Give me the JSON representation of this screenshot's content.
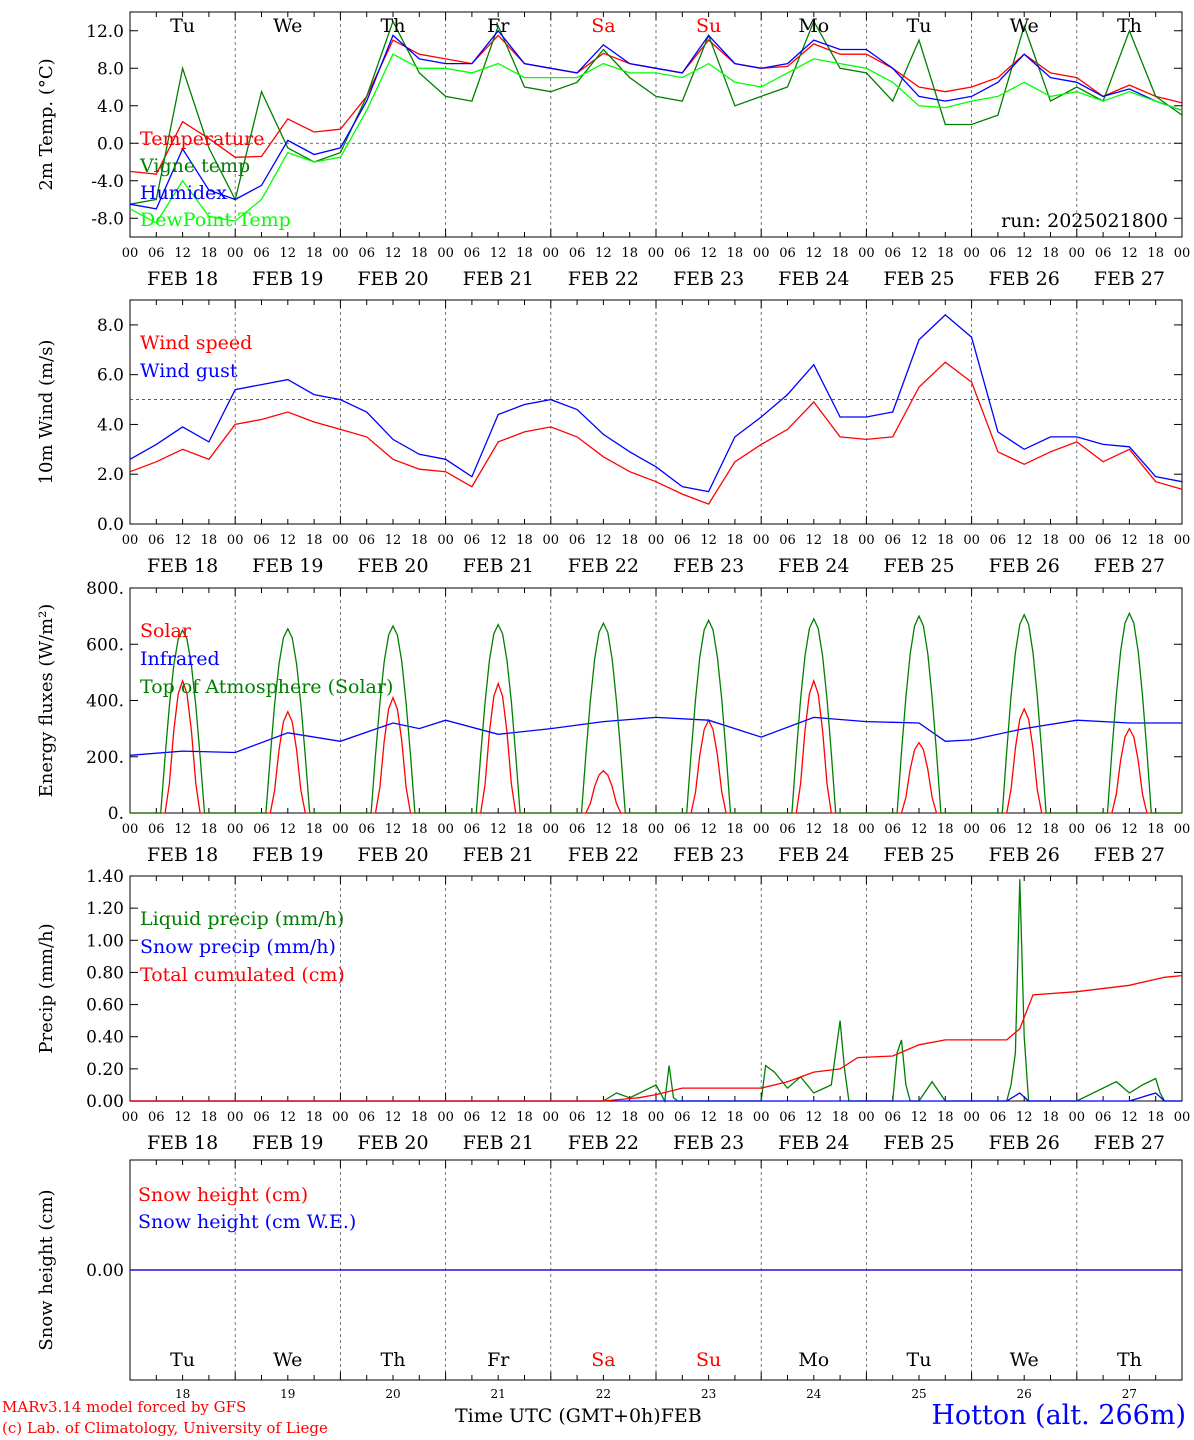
{
  "run_label": "run: 2025021800",
  "station": "Hotton (alt. 266m)",
  "credit_line1": "MARv3.14 model forced by GFS",
  "credit_line2": "(c) Lab. of Climatology, University of Liege",
  "xlabel": "Time UTC (GMT+0h)",
  "month_label": "FEB",
  "days": [
    "FEB 18",
    "FEB 19",
    "FEB 20",
    "FEB 21",
    "FEB 22",
    "FEB 23",
    "FEB 24",
    "FEB 25",
    "FEB 26",
    "FEB 27"
  ],
  "day_numbers": [
    "18",
    "19",
    "20",
    "21",
    "22",
    "23",
    "24",
    "25",
    "26",
    "27"
  ],
  "weekdays": [
    "Tu",
    "We",
    "Th",
    "Fr",
    "Sa",
    "Su",
    "Mo",
    "Tu",
    "We",
    "Th"
  ],
  "weekend_color": "#ff0000",
  "hour_ticks": [
    "00",
    "06",
    "12",
    "18"
  ],
  "colors": {
    "red": "#ff0000",
    "green": "#007f00",
    "blue": "#0000ff",
    "lime": "#00ff00",
    "grid": "#555555"
  },
  "chart_data": [
    {
      "type": "line",
      "ylabel": "2m Temp. (°C)",
      "ylim": [
        -10,
        14
      ],
      "yticks": [
        -8,
        -4,
        0,
        4,
        8,
        12
      ],
      "ytick_labels": [
        "-8.0",
        "-4.0",
        "0.0",
        "4.0",
        "8.0",
        "12.0"
      ],
      "hline": 0,
      "x_unit": "hours since FEB 18 00 UTC",
      "series": [
        {
          "name": "Temperature",
          "color": "#ff0000",
          "x": [
            0,
            6,
            12,
            18,
            24,
            30,
            36,
            42,
            48,
            54,
            60,
            66,
            72,
            78,
            84,
            90,
            96,
            102,
            108,
            114,
            120,
            126,
            132,
            138,
            144,
            150,
            156,
            162,
            168,
            174,
            180,
            186,
            192,
            198,
            204,
            210,
            216,
            222,
            228,
            234,
            240
          ],
          "y": [
            -3,
            -3.3,
            2.3,
            0.5,
            -1.5,
            -1.4,
            2.6,
            1.2,
            1.5,
            5,
            11,
            9.5,
            9,
            8.5,
            11.5,
            8.5,
            8,
            7.5,
            9.6,
            8.5,
            8,
            7.5,
            11,
            8.5,
            8,
            8.2,
            10.6,
            9.5,
            9.5,
            8,
            6,
            5.5,
            6,
            7,
            9.5,
            7.5,
            7,
            5,
            6.2,
            5,
            4.3
          ]
        },
        {
          "name": "Vigne temp",
          "color": "#007f00",
          "x": [
            0,
            6,
            12,
            18,
            24,
            30,
            36,
            42,
            48,
            54,
            60,
            66,
            72,
            78,
            84,
            90,
            96,
            102,
            108,
            114,
            120,
            126,
            132,
            138,
            144,
            150,
            156,
            162,
            168,
            174,
            180,
            186,
            192,
            198,
            204,
            210,
            216,
            222,
            228,
            234,
            240
          ],
          "y": [
            -6.5,
            -6,
            8,
            -0.5,
            -6,
            5.5,
            -0.5,
            -2,
            -1,
            5,
            13,
            7.5,
            5,
            4.5,
            12.5,
            6,
            5.5,
            6.5,
            10,
            7,
            5,
            4.5,
            11.5,
            4,
            5,
            6,
            13,
            8,
            7.5,
            4.5,
            11,
            2,
            2,
            3,
            12.5,
            4.5,
            6,
            4.5,
            12,
            5,
            3
          ]
        },
        {
          "name": "Humidex",
          "color": "#0000ff",
          "x": [
            0,
            6,
            12,
            18,
            24,
            30,
            36,
            42,
            48,
            54,
            60,
            66,
            72,
            78,
            84,
            90,
            96,
            102,
            108,
            114,
            120,
            126,
            132,
            138,
            144,
            150,
            156,
            162,
            168,
            174,
            180,
            186,
            192,
            198,
            204,
            210,
            216,
            222,
            228,
            234,
            240
          ],
          "y": [
            -6.5,
            -7,
            -0.6,
            -5,
            -6,
            -4.5,
            0.3,
            -1.2,
            -0.5,
            4.5,
            11.5,
            9,
            8.5,
            8.5,
            12,
            8.5,
            8,
            7.5,
            10.5,
            8.5,
            8,
            7.5,
            11.5,
            8.5,
            8,
            8.5,
            11,
            10,
            10,
            8,
            5,
            4.5,
            5,
            6.5,
            9.5,
            7,
            6.5,
            5,
            5.8,
            4.5,
            3.5
          ]
        },
        {
          "name": "DewPoint Temp",
          "color": "#00ff00",
          "x": [
            0,
            6,
            12,
            18,
            24,
            30,
            36,
            42,
            48,
            54,
            60,
            66,
            72,
            78,
            84,
            90,
            96,
            102,
            108,
            114,
            120,
            126,
            132,
            138,
            144,
            150,
            156,
            162,
            168,
            174,
            180,
            186,
            192,
            198,
            204,
            210,
            216,
            222,
            228,
            234,
            240
          ],
          "y": [
            -7,
            -8.5,
            -4,
            -7.8,
            -8.3,
            -6,
            -1,
            -2,
            -1.5,
            3.5,
            9.5,
            8,
            8,
            7.5,
            8.5,
            7,
            7,
            7,
            8.5,
            7.5,
            7.5,
            7,
            8.5,
            6.5,
            6,
            7.5,
            9,
            8.5,
            8,
            6.5,
            4,
            3.8,
            4.5,
            5,
            6.5,
            5,
            5.5,
            4.5,
            5.5,
            4.5,
            3.5
          ]
        }
      ]
    },
    {
      "type": "line",
      "ylabel": "10m Wind (m/s)",
      "ylim": [
        0,
        9
      ],
      "yticks": [
        0,
        2,
        4,
        6,
        8
      ],
      "ytick_labels": [
        "0.0",
        "2.0",
        "4.0",
        "6.0",
        "8.0"
      ],
      "hline": 5,
      "series": [
        {
          "name": "Wind speed",
          "color": "#ff0000",
          "x": [
            0,
            6,
            12,
            18,
            24,
            30,
            36,
            42,
            48,
            54,
            60,
            66,
            72,
            78,
            84,
            90,
            96,
            102,
            108,
            114,
            120,
            126,
            132,
            138,
            144,
            150,
            156,
            162,
            168,
            174,
            180,
            186,
            192,
            198,
            204,
            210,
            216,
            222,
            228,
            234,
            240
          ],
          "y": [
            2.1,
            2.5,
            3,
            2.6,
            4,
            4.2,
            4.5,
            4.1,
            3.8,
            3.5,
            2.6,
            2.2,
            2.1,
            1.5,
            3.3,
            3.7,
            3.9,
            3.5,
            2.7,
            2.1,
            1.7,
            1.2,
            0.8,
            2.5,
            3.2,
            3.8,
            4.9,
            3.5,
            3.4,
            3.5,
            5.5,
            6.5,
            5.7,
            2.9,
            2.4,
            2.9,
            3.3,
            2.5,
            3,
            1.7,
            1.4
          ]
        },
        {
          "name": "Wind gust",
          "color": "#0000ff",
          "x": [
            0,
            6,
            12,
            18,
            24,
            30,
            36,
            42,
            48,
            54,
            60,
            66,
            72,
            78,
            84,
            90,
            96,
            102,
            108,
            114,
            120,
            126,
            132,
            138,
            144,
            150,
            156,
            162,
            168,
            174,
            180,
            186,
            192,
            198,
            204,
            210,
            216,
            222,
            228,
            234,
            240
          ],
          "y": [
            2.6,
            3.2,
            3.9,
            3.3,
            5.4,
            5.6,
            5.8,
            5.2,
            5,
            4.5,
            3.4,
            2.8,
            2.6,
            1.9,
            4.4,
            4.8,
            5,
            4.6,
            3.6,
            2.9,
            2.3,
            1.5,
            1.3,
            3.5,
            4.3,
            5.2,
            6.4,
            4.3,
            4.3,
            4.5,
            7.4,
            8.4,
            7.5,
            3.7,
            3,
            3.5,
            3.5,
            3.2,
            3.1,
            1.9,
            1.7
          ]
        }
      ]
    },
    {
      "type": "line",
      "ylabel": "Energy fluxes (W/m²)",
      "ylim": [
        0,
        800
      ],
      "yticks": [
        0,
        200,
        400,
        600,
        800
      ],
      "ytick_labels": [
        "0.",
        "200.",
        "400.",
        "600.",
        "800."
      ],
      "series": [
        {
          "name": "Solar",
          "color": "#ff0000",
          "peaks": [
            470,
            360,
            410,
            460,
            150,
            330,
            470,
            250,
            370,
            300
          ]
        },
        {
          "name": "Infrared",
          "color": "#0000ff",
          "x": [
            0,
            12,
            24,
            36,
            48,
            60,
            66,
            72,
            84,
            96,
            108,
            120,
            132,
            144,
            156,
            168,
            180,
            186,
            192,
            204,
            216,
            228,
            240
          ],
          "y": [
            205,
            220,
            215,
            285,
            255,
            320,
            300,
            330,
            280,
            300,
            325,
            340,
            330,
            270,
            340,
            325,
            320,
            255,
            260,
            300,
            330,
            320,
            320
          ]
        },
        {
          "name": "Top of Atmosphere (Solar)",
          "color": "#007f00",
          "peaks": [
            650,
            655,
            665,
            670,
            675,
            685,
            690,
            700,
            705,
            710
          ]
        }
      ]
    },
    {
      "type": "line",
      "ylabel": "Precip (mm/h)",
      "ylim": [
        0,
        1.4
      ],
      "yticks": [
        0,
        0.2,
        0.4,
        0.6,
        0.8,
        1.0,
        1.2,
        1.4
      ],
      "ytick_labels": [
        "0.00",
        "0.20",
        "0.40",
        "0.60",
        "0.80",
        "1.00",
        "1.20",
        "1.40"
      ],
      "series": [
        {
          "name": "Liquid precip (mm/h)",
          "color": "#007f00",
          "x": [
            0,
            108,
            111,
            114,
            117,
            120,
            122,
            123,
            124,
            125,
            126,
            144,
            145,
            147,
            150,
            153,
            156,
            160,
            162,
            163,
            164,
            165,
            168,
            174,
            175,
            176,
            177,
            178,
            180,
            183,
            186,
            200,
            201,
            202,
            203,
            204,
            205,
            216,
            225,
            228,
            231,
            234,
            235,
            236,
            240
          ],
          "y": [
            0,
            0,
            0.05,
            0.02,
            0.06,
            0.1,
            0,
            0.22,
            0.02,
            0,
            0,
            0,
            0.22,
            0.18,
            0.08,
            0.15,
            0.05,
            0.1,
            0.5,
            0.2,
            0,
            0,
            0,
            0,
            0.3,
            0.38,
            0.1,
            0,
            0,
            0.12,
            0,
            0,
            0.1,
            0.3,
            1.38,
            0.4,
            0,
            0,
            0.12,
            0.05,
            0.1,
            0.14,
            0.05,
            0,
            0
          ]
        },
        {
          "name": "Snow precip (mm/h)",
          "color": "#0000ff",
          "x": [
            0,
            200,
            203,
            205,
            228,
            234,
            236,
            240
          ],
          "y": [
            0,
            0,
            0.05,
            0,
            0,
            0.05,
            0,
            0
          ]
        },
        {
          "name": "Total cumulated (cm)",
          "color": "#ff0000",
          "x": [
            0,
            108,
            116,
            120,
            126,
            144,
            150,
            156,
            162,
            166,
            174,
            180,
            186,
            200,
            203,
            206,
            216,
            228,
            236,
            240
          ],
          "y": [
            0,
            0,
            0.02,
            0.04,
            0.08,
            0.08,
            0.12,
            0.18,
            0.2,
            0.27,
            0.28,
            0.35,
            0.38,
            0.38,
            0.45,
            0.66,
            0.68,
            0.72,
            0.77,
            0.78
          ]
        }
      ]
    },
    {
      "type": "line",
      "ylabel": "Snow height (cm)",
      "ylim": [
        -1,
        1
      ],
      "yticks": [
        0
      ],
      "ytick_labels": [
        "0.00"
      ],
      "series": [
        {
          "name": "Snow height (cm)",
          "color": "#ff0000",
          "x": [
            0,
            240
          ],
          "y": [
            0,
            0
          ]
        },
        {
          "name": "Snow height (cm W.E.)",
          "color": "#0000ff",
          "x": [
            0,
            240
          ],
          "y": [
            0,
            0
          ]
        }
      ]
    }
  ]
}
